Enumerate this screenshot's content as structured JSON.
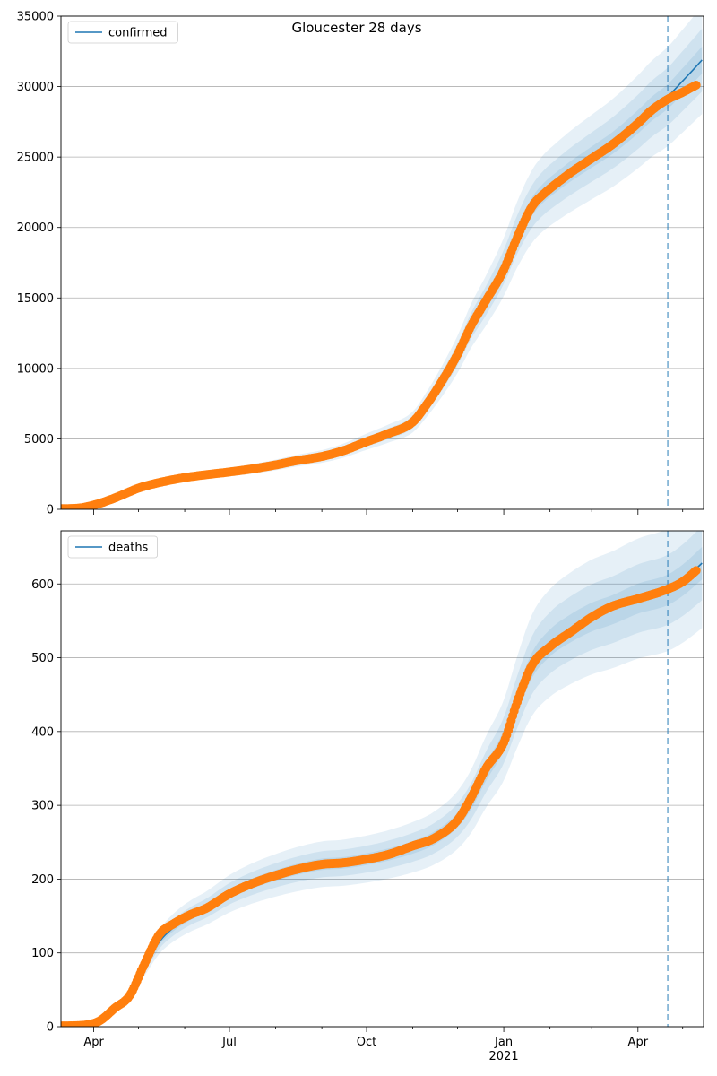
{
  "figure": {
    "title": "Gloucester 28 days",
    "colors": {
      "model_line": "#1f77b4",
      "observed": "#ff7f0e",
      "band": "#1f77b4",
      "grid": "#b0b0b0",
      "vline": "#1f77b4"
    }
  },
  "chart_data": [
    {
      "type": "line",
      "legend": "confirmed",
      "legend_position": "upper-left",
      "grid": "y",
      "xlim": [
        "2020-03-10",
        "2021-05-15"
      ],
      "ylim": [
        0,
        35000
      ],
      "yticks": [
        0,
        5000,
        10000,
        15000,
        20000,
        25000,
        30000,
        35000
      ],
      "ytick_labels": [
        "0",
        "5000",
        "10000",
        "15000",
        "20000",
        "25000",
        "30000",
        "35000"
      ],
      "forecast_start": "2021-04-21",
      "model": {
        "x": [
          "2020-03-10",
          "2020-03-20",
          "2020-04-01",
          "2020-04-15",
          "2020-05-01",
          "2020-05-15",
          "2020-06-01",
          "2020-06-15",
          "2020-07-01",
          "2020-07-15",
          "2020-08-01",
          "2020-08-15",
          "2020-09-01",
          "2020-09-15",
          "2020-10-01",
          "2020-10-15",
          "2020-11-01",
          "2020-11-10",
          "2020-11-20",
          "2020-12-01",
          "2020-12-10",
          "2020-12-20",
          "2021-01-01",
          "2021-01-10",
          "2021-01-20",
          "2021-01-28",
          "2021-02-05",
          "2021-02-15",
          "2021-03-01",
          "2021-03-15",
          "2021-04-01",
          "2021-04-10",
          "2021-04-21",
          "2021-05-01",
          "2021-05-15"
        ],
        "y": [
          50,
          70,
          300,
          800,
          1500,
          1900,
          2250,
          2450,
          2650,
          2850,
          3150,
          3450,
          3750,
          4150,
          4800,
          5350,
          6200,
          7400,
          9000,
          11000,
          13000,
          14800,
          17200,
          19500,
          21500,
          22500,
          23200,
          24000,
          25000,
          26000,
          27500,
          28400,
          29300,
          30400,
          32000
        ],
        "band_halfwidths": [
          0.03,
          0.07,
          0.12
        ]
      },
      "observed": {
        "x": [
          "2020-03-10",
          "2020-03-20",
          "2020-04-01",
          "2020-04-15",
          "2020-05-01",
          "2020-05-15",
          "2020-06-01",
          "2020-06-15",
          "2020-07-01",
          "2020-07-15",
          "2020-08-01",
          "2020-08-15",
          "2020-09-01",
          "2020-09-15",
          "2020-10-01",
          "2020-10-15",
          "2020-11-01",
          "2020-11-10",
          "2020-11-20",
          "2020-12-01",
          "2020-12-10",
          "2020-12-20",
          "2021-01-01",
          "2021-01-10",
          "2021-01-20",
          "2021-01-28",
          "2021-02-05",
          "2021-02-15",
          "2021-03-01",
          "2021-03-15",
          "2021-04-01",
          "2021-04-10",
          "2021-04-21",
          "2021-05-01",
          "2021-05-10"
        ],
        "y": [
          50,
          70,
          300,
          800,
          1500,
          1900,
          2250,
          2450,
          2650,
          2850,
          3150,
          3450,
          3750,
          4150,
          4800,
          5350,
          6200,
          7400,
          9000,
          11000,
          13000,
          14800,
          17000,
          19300,
          21500,
          22400,
          23100,
          23900,
          24900,
          25900,
          27400,
          28300,
          29100,
          29600,
          30100
        ]
      }
    },
    {
      "type": "line",
      "legend": "deaths",
      "legend_position": "upper-left",
      "grid": "y",
      "xlim": [
        "2020-03-10",
        "2021-05-15"
      ],
      "ylim": [
        0,
        672
      ],
      "yticks": [
        0,
        100,
        200,
        300,
        400,
        500,
        600
      ],
      "ytick_labels": [
        "0",
        "100",
        "200",
        "300",
        "400",
        "500",
        "600"
      ],
      "xticks": [
        "2020-04-01",
        "2020-07-01",
        "2020-10-01",
        "2021-01-01",
        "2021-04-01"
      ],
      "xtick_labels": [
        "Apr",
        "Jul",
        "Oct",
        "Jan",
        "Apr"
      ],
      "xtick_sublabels": [
        "",
        "",
        "",
        "2021",
        ""
      ],
      "xminor_ticks": [
        "2020-05-01",
        "2020-06-01",
        "2020-08-01",
        "2020-09-01",
        "2020-11-01",
        "2020-12-01",
        "2021-02-01",
        "2021-03-01",
        "2021-05-01"
      ],
      "forecast_start": "2021-04-21",
      "model": {
        "x": [
          "2020-03-10",
          "2020-03-25",
          "2020-04-05",
          "2020-04-15",
          "2020-04-25",
          "2020-05-05",
          "2020-05-15",
          "2020-05-25",
          "2020-06-05",
          "2020-06-15",
          "2020-07-01",
          "2020-07-15",
          "2020-08-01",
          "2020-08-15",
          "2020-09-01",
          "2020-09-15",
          "2020-10-01",
          "2020-10-15",
          "2020-11-01",
          "2020-11-15",
          "2020-12-01",
          "2020-12-10",
          "2020-12-20",
          "2021-01-01",
          "2021-01-10",
          "2021-01-20",
          "2021-02-01",
          "2021-02-15",
          "2021-03-01",
          "2021-03-15",
          "2021-04-01",
          "2021-04-21",
          "2021-05-01",
          "2021-05-15"
        ],
        "y": [
          1,
          2,
          8,
          25,
          45,
          80,
          115,
          135,
          150,
          160,
          180,
          193,
          205,
          213,
          220,
          222,
          227,
          233,
          243,
          255,
          280,
          305,
          345,
          388,
          440,
          490,
          520,
          540,
          555,
          565,
          580,
          592,
          605,
          630
        ],
        "band_halfwidths": [
          0.035,
          0.08,
          0.14
        ]
      },
      "observed": {
        "x": [
          "2020-03-10",
          "2020-03-25",
          "2020-04-05",
          "2020-04-15",
          "2020-04-25",
          "2020-05-05",
          "2020-05-15",
          "2020-05-25",
          "2020-06-05",
          "2020-06-15",
          "2020-07-01",
          "2020-07-15",
          "2020-08-01",
          "2020-08-15",
          "2020-09-01",
          "2020-09-15",
          "2020-10-01",
          "2020-10-15",
          "2020-11-01",
          "2020-11-15",
          "2020-12-01",
          "2020-12-10",
          "2020-12-20",
          "2021-01-01",
          "2021-01-10",
          "2021-01-20",
          "2021-02-01",
          "2021-02-15",
          "2021-03-01",
          "2021-03-15",
          "2021-04-01",
          "2021-04-21",
          "2021-05-01",
          "2021-05-10"
        ],
        "y": [
          1,
          2,
          8,
          25,
          42,
          85,
          125,
          140,
          152,
          160,
          180,
          193,
          205,
          213,
          220,
          222,
          227,
          233,
          245,
          255,
          280,
          310,
          350,
          385,
          440,
          490,
          515,
          535,
          555,
          570,
          580,
          593,
          603,
          618
        ]
      }
    }
  ]
}
